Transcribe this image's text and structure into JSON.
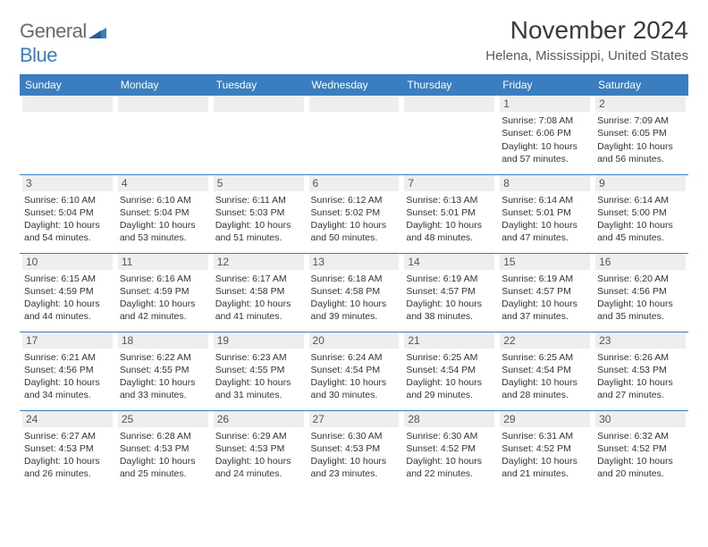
{
  "brand": {
    "part1": "General",
    "part2": "Blue",
    "accent_color": "#3a7ebf",
    "gray_color": "#6a6a6a"
  },
  "header": {
    "month_title": "November 2024",
    "location": "Helena, Mississippi, United States"
  },
  "days_of_week": [
    "Sunday",
    "Monday",
    "Tuesday",
    "Wednesday",
    "Thursday",
    "Friday",
    "Saturday"
  ],
  "calendar": {
    "type": "table",
    "header_bg": "#3a7ebf",
    "header_text_color": "#ffffff",
    "row_border_color": "#3a7ebf",
    "daynum_bg": "#eeeeee",
    "text_color": "#333333",
    "font_size_header": 12,
    "font_size_daynum": 12,
    "font_size_body": 10.5,
    "weeks": [
      [
        null,
        null,
        null,
        null,
        null,
        {
          "n": "1",
          "sunrise": "7:08 AM",
          "sunset": "6:06 PM",
          "daylight": "10 hours and 57 minutes."
        },
        {
          "n": "2",
          "sunrise": "7:09 AM",
          "sunset": "6:05 PM",
          "daylight": "10 hours and 56 minutes."
        }
      ],
      [
        {
          "n": "3",
          "sunrise": "6:10 AM",
          "sunset": "5:04 PM",
          "daylight": "10 hours and 54 minutes."
        },
        {
          "n": "4",
          "sunrise": "6:10 AM",
          "sunset": "5:04 PM",
          "daylight": "10 hours and 53 minutes."
        },
        {
          "n": "5",
          "sunrise": "6:11 AM",
          "sunset": "5:03 PM",
          "daylight": "10 hours and 51 minutes."
        },
        {
          "n": "6",
          "sunrise": "6:12 AM",
          "sunset": "5:02 PM",
          "daylight": "10 hours and 50 minutes."
        },
        {
          "n": "7",
          "sunrise": "6:13 AM",
          "sunset": "5:01 PM",
          "daylight": "10 hours and 48 minutes."
        },
        {
          "n": "8",
          "sunrise": "6:14 AM",
          "sunset": "5:01 PM",
          "daylight": "10 hours and 47 minutes."
        },
        {
          "n": "9",
          "sunrise": "6:14 AM",
          "sunset": "5:00 PM",
          "daylight": "10 hours and 45 minutes."
        }
      ],
      [
        {
          "n": "10",
          "sunrise": "6:15 AM",
          "sunset": "4:59 PM",
          "daylight": "10 hours and 44 minutes."
        },
        {
          "n": "11",
          "sunrise": "6:16 AM",
          "sunset": "4:59 PM",
          "daylight": "10 hours and 42 minutes."
        },
        {
          "n": "12",
          "sunrise": "6:17 AM",
          "sunset": "4:58 PM",
          "daylight": "10 hours and 41 minutes."
        },
        {
          "n": "13",
          "sunrise": "6:18 AM",
          "sunset": "4:58 PM",
          "daylight": "10 hours and 39 minutes."
        },
        {
          "n": "14",
          "sunrise": "6:19 AM",
          "sunset": "4:57 PM",
          "daylight": "10 hours and 38 minutes."
        },
        {
          "n": "15",
          "sunrise": "6:19 AM",
          "sunset": "4:57 PM",
          "daylight": "10 hours and 37 minutes."
        },
        {
          "n": "16",
          "sunrise": "6:20 AM",
          "sunset": "4:56 PM",
          "daylight": "10 hours and 35 minutes."
        }
      ],
      [
        {
          "n": "17",
          "sunrise": "6:21 AM",
          "sunset": "4:56 PM",
          "daylight": "10 hours and 34 minutes."
        },
        {
          "n": "18",
          "sunrise": "6:22 AM",
          "sunset": "4:55 PM",
          "daylight": "10 hours and 33 minutes."
        },
        {
          "n": "19",
          "sunrise": "6:23 AM",
          "sunset": "4:55 PM",
          "daylight": "10 hours and 31 minutes."
        },
        {
          "n": "20",
          "sunrise": "6:24 AM",
          "sunset": "4:54 PM",
          "daylight": "10 hours and 30 minutes."
        },
        {
          "n": "21",
          "sunrise": "6:25 AM",
          "sunset": "4:54 PM",
          "daylight": "10 hours and 29 minutes."
        },
        {
          "n": "22",
          "sunrise": "6:25 AM",
          "sunset": "4:54 PM",
          "daylight": "10 hours and 28 minutes."
        },
        {
          "n": "23",
          "sunrise": "6:26 AM",
          "sunset": "4:53 PM",
          "daylight": "10 hours and 27 minutes."
        }
      ],
      [
        {
          "n": "24",
          "sunrise": "6:27 AM",
          "sunset": "4:53 PM",
          "daylight": "10 hours and 26 minutes."
        },
        {
          "n": "25",
          "sunrise": "6:28 AM",
          "sunset": "4:53 PM",
          "daylight": "10 hours and 25 minutes."
        },
        {
          "n": "26",
          "sunrise": "6:29 AM",
          "sunset": "4:53 PM",
          "daylight": "10 hours and 24 minutes."
        },
        {
          "n": "27",
          "sunrise": "6:30 AM",
          "sunset": "4:53 PM",
          "daylight": "10 hours and 23 minutes."
        },
        {
          "n": "28",
          "sunrise": "6:30 AM",
          "sunset": "4:52 PM",
          "daylight": "10 hours and 22 minutes."
        },
        {
          "n": "29",
          "sunrise": "6:31 AM",
          "sunset": "4:52 PM",
          "daylight": "10 hours and 21 minutes."
        },
        {
          "n": "30",
          "sunrise": "6:32 AM",
          "sunset": "4:52 PM",
          "daylight": "10 hours and 20 minutes."
        }
      ]
    ]
  },
  "labels": {
    "sunrise_prefix": "Sunrise: ",
    "sunset_prefix": "Sunset: ",
    "daylight_prefix": "Daylight: "
  }
}
